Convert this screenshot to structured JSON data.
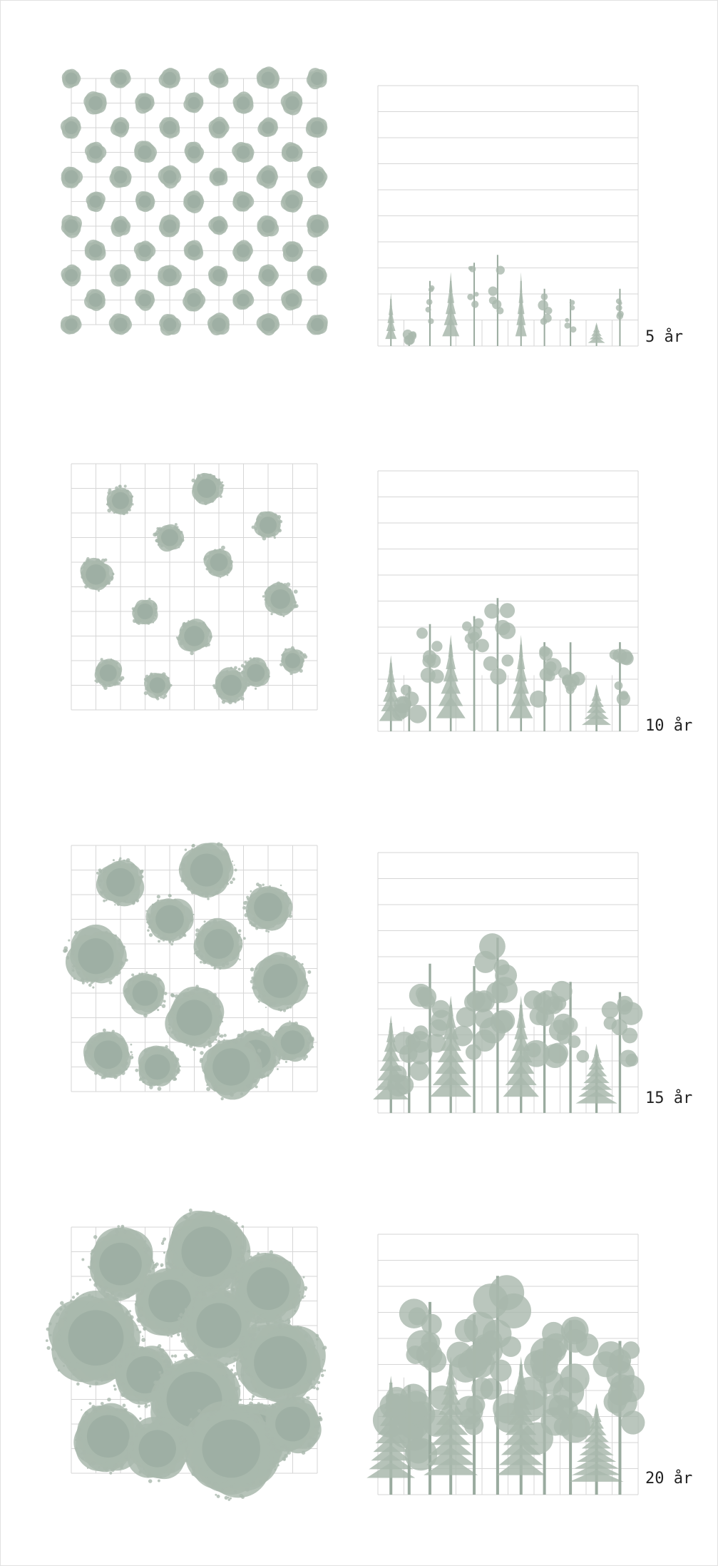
{
  "stages": [
    {
      "label": "5 år",
      "growth": 0.0
    },
    {
      "label": "10 år",
      "growth": 0.33
    },
    {
      "label": "15 år",
      "growth": 0.66
    },
    {
      "label": "20 år",
      "growth": 1.0
    }
  ],
  "colors": {
    "foliage": "#a9b8ad",
    "foliage_dark": "#9aab9f",
    "grid": "#d6d6d6",
    "text": "#222222"
  },
  "icons": {
    "crown": "tree-crown-icon",
    "tree": "tree-side-icon"
  }
}
